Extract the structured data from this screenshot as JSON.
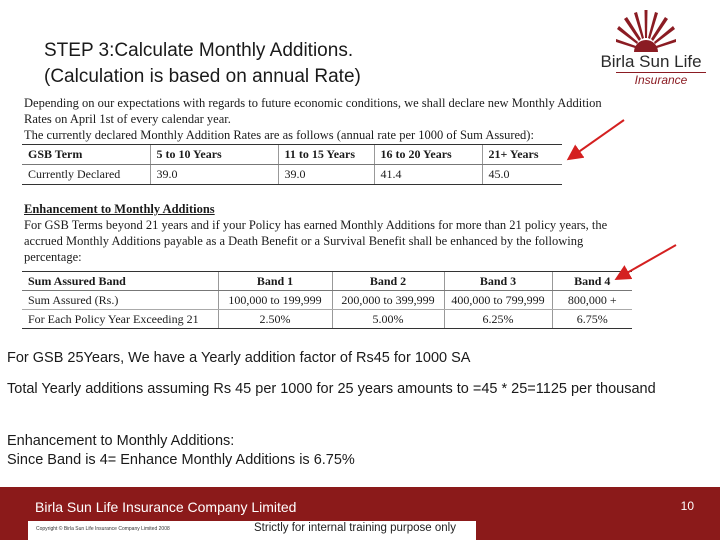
{
  "slide": {
    "title_line1": "STEP 3:Calculate Monthly Additions.",
    "title_line2": "(Calculation is based on annual Rate)"
  },
  "logo": {
    "name": "Birla Sun Life",
    "sub": "Insurance",
    "color": "#8b1c23"
  },
  "scan": {
    "para1_line1": "Depending on our expectations with regards to future economic conditions, we shall declare new Monthly Addition",
    "para1_line2": "Rates on April 1st of every calendar year.",
    "para1_line3": "The currently declared Monthly Addition Rates are as follows (annual rate per 1000 of Sum Assured):",
    "table1": {
      "headers": [
        "GSB Term",
        "5 to 10 Years",
        "11 to 15 Years",
        "16 to 20 Years",
        "21+ Years"
      ],
      "row": [
        "Currently Declared",
        "39.0",
        "39.0",
        "41.4",
        "45.0"
      ]
    },
    "section_heading": "Enhancement to Monthly Additions",
    "para2_line1": "For GSB Terms beyond 21 years and if your Policy has earned Monthly Additions for more than 21 policy years, the",
    "para2_line2": "accrued Monthly Additions payable as a Death Benefit or a Survival Benefit shall be enhanced by the following",
    "para2_line3": "percentage:",
    "table2": {
      "headers": [
        "Sum Assured Band",
        "Band 1",
        "Band 2",
        "Band 3",
        "Band 4"
      ],
      "rows": [
        [
          "Sum Assured (Rs.)",
          "100,000 to 199,999",
          "200,000 to 399,999",
          "400,000 to 799,999",
          "800,000 +"
        ],
        [
          "For Each Policy Year Exceeding 21",
          "2.50%",
          "5.00%",
          "6.25%",
          "6.75%"
        ]
      ]
    }
  },
  "notes": {
    "line1": "For GSB  25Years, We have a Yearly addition factor of Rs45 for 1000 SA",
    "line2": "Total Yearly additions assuming Rs 45 per 1000 for 25 years amounts to =45 * 25=1125 per thousand",
    "line3a": "Enhancement to Monthly Additions:",
    "line3b": "Since Band is 4= Enhance Monthly Additions is 6.75%"
  },
  "footer": {
    "company": "Birla Sun Life Insurance Company Limited",
    "page_number": "10",
    "copyright": "Copyright © Birla Sun Life Insurance Company Limited 2008",
    "training_note": "Strictly for internal training purpose only",
    "background": "#8b1a1a"
  },
  "annotations": {
    "arrow_color": "#d42020"
  }
}
